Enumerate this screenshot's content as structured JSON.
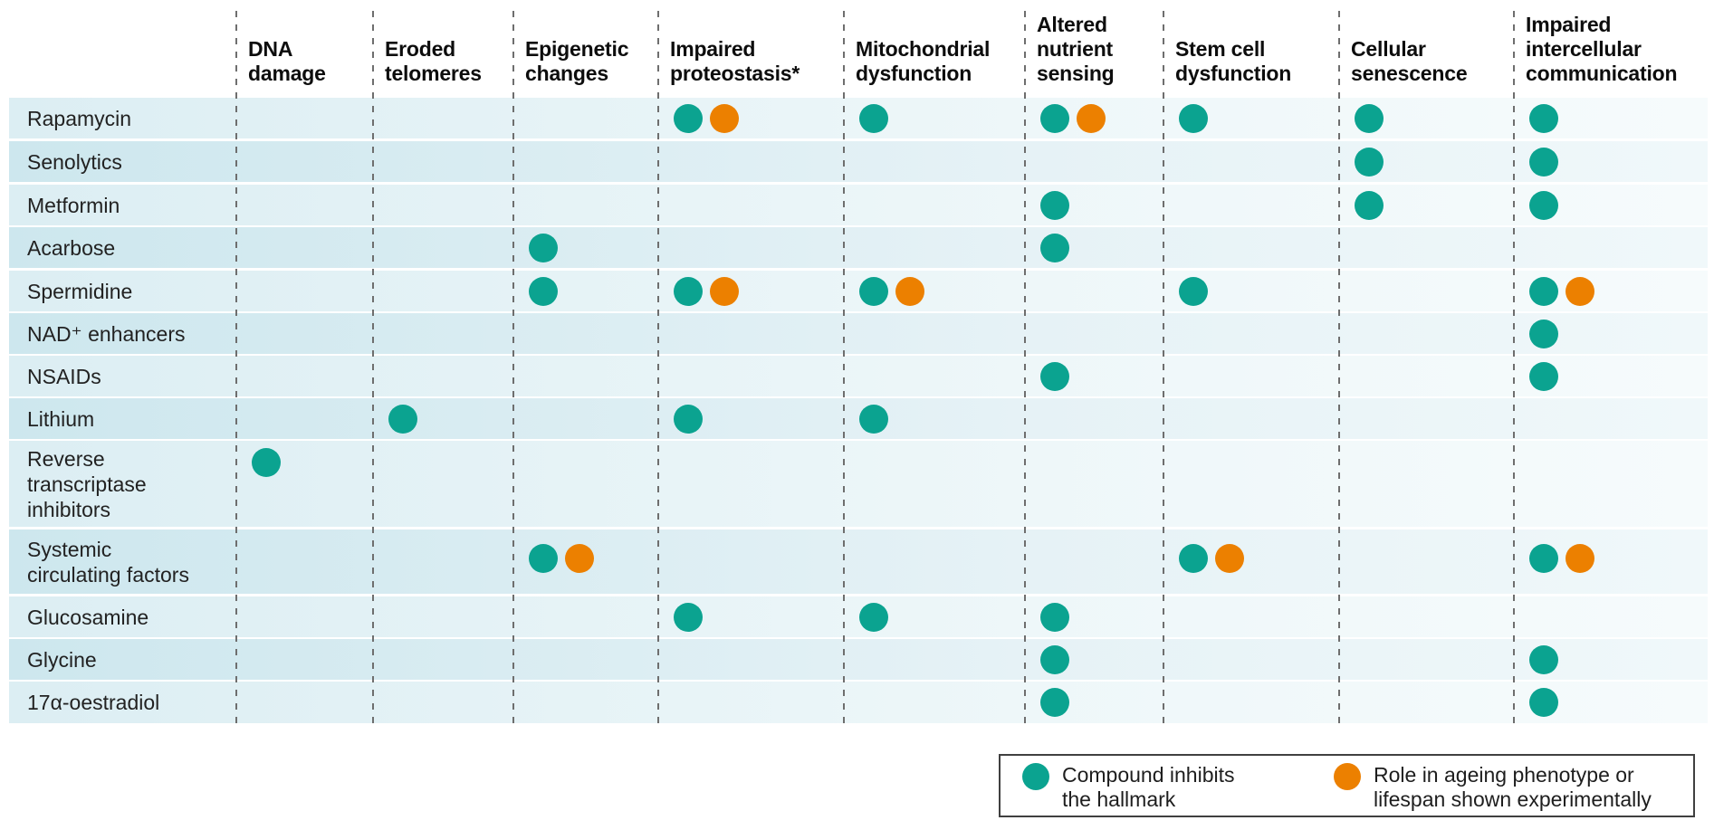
{
  "chart_data": {
    "type": "table",
    "title": "",
    "columns": [
      "DNA\ndamage",
      "Eroded\ntelomeres",
      "Epigenetic\nchanges",
      "Impaired\nproteostasis*",
      "Mitochondrial\ndysfunction",
      "Altered\nnutrient\nsensing",
      "Stem cell\ndysfunction",
      "Cellular\nsenescence",
      "Impaired\nintercellular\ncommunication"
    ],
    "rows": [
      {
        "label": "Rapamycin",
        "cells": [
          [],
          [],
          [],
          [
            "inhibits",
            "experimental"
          ],
          [
            "inhibits"
          ],
          [
            "inhibits",
            "experimental"
          ],
          [
            "inhibits"
          ],
          [
            "inhibits"
          ],
          [
            "inhibits"
          ]
        ]
      },
      {
        "label": "Senolytics",
        "cells": [
          [],
          [],
          [],
          [],
          [],
          [],
          [],
          [
            "inhibits"
          ],
          [
            "inhibits"
          ]
        ]
      },
      {
        "label": "Metformin",
        "cells": [
          [],
          [],
          [],
          [],
          [],
          [
            "inhibits"
          ],
          [],
          [
            "inhibits"
          ],
          [
            "inhibits"
          ]
        ]
      },
      {
        "label": "Acarbose",
        "cells": [
          [],
          [],
          [
            "inhibits"
          ],
          [],
          [],
          [
            "inhibits"
          ],
          [],
          [],
          []
        ]
      },
      {
        "label": "Spermidine",
        "cells": [
          [],
          [],
          [
            "inhibits"
          ],
          [
            "inhibits",
            "experimental"
          ],
          [
            "inhibits",
            "experimental"
          ],
          [],
          [
            "inhibits"
          ],
          [],
          [
            "inhibits",
            "experimental"
          ]
        ]
      },
      {
        "label": "NAD⁺ enhancers",
        "cells": [
          [],
          [],
          [],
          [],
          [],
          [],
          [],
          [],
          [
            "inhibits"
          ]
        ]
      },
      {
        "label": "NSAIDs",
        "cells": [
          [],
          [],
          [],
          [],
          [],
          [
            "inhibits"
          ],
          [],
          [],
          [
            "inhibits"
          ]
        ]
      },
      {
        "label": "Lithium",
        "cells": [
          [],
          [
            "inhibits"
          ],
          [],
          [
            "inhibits"
          ],
          [
            "inhibits"
          ],
          [],
          [],
          [],
          []
        ]
      },
      {
        "label": "Reverse\ntranscriptase\ninhibitors",
        "cells": [
          [
            "inhibits"
          ],
          [],
          [],
          [],
          [],
          [],
          [],
          [],
          []
        ]
      },
      {
        "label": "Systemic\ncirculating factors",
        "cells": [
          [],
          [],
          [
            "inhibits",
            "experimental"
          ],
          [],
          [],
          [],
          [
            "inhibits",
            "experimental"
          ],
          [],
          [
            "inhibits",
            "experimental"
          ]
        ]
      },
      {
        "label": "Glucosamine",
        "cells": [
          [],
          [],
          [],
          [
            "inhibits"
          ],
          [
            "inhibits"
          ],
          [
            "inhibits"
          ],
          [],
          [],
          []
        ]
      },
      {
        "label": "Glycine",
        "cells": [
          [],
          [],
          [],
          [],
          [],
          [
            "inhibits"
          ],
          [],
          [],
          [
            "inhibits"
          ]
        ]
      },
      {
        "label": "17α-oestradiol",
        "cells": [
          [],
          [],
          [],
          [],
          [],
          [
            "inhibits"
          ],
          [],
          [],
          [
            "inhibits"
          ]
        ]
      }
    ],
    "markers": {
      "inhibits": {
        "color": "#0BA390",
        "meaning": "Compound inhibits the hallmark"
      },
      "experimental": {
        "color": "#EC8000",
        "meaning": "Role in ageing phenotype or lifespan shown experimentally"
      }
    },
    "legend_position": "bottom-right",
    "grid": "dashed-column-separators"
  },
  "legend": {
    "items": [
      {
        "marker": "inhibits",
        "label": "Compound inhibits\nthe hallmark"
      },
      {
        "marker": "experimental",
        "label": "Role in ageing phenotype or\nlifespan shown experimentally"
      }
    ]
  },
  "colors": {
    "teal": "#0BA390",
    "orange": "#EC8000",
    "row_band_light": "#dceef3",
    "row_band_dark": "#cde7ee",
    "dash_gray": "#6e6e6e",
    "legend_border": "#404040",
    "text": "#1e1e1e"
  }
}
